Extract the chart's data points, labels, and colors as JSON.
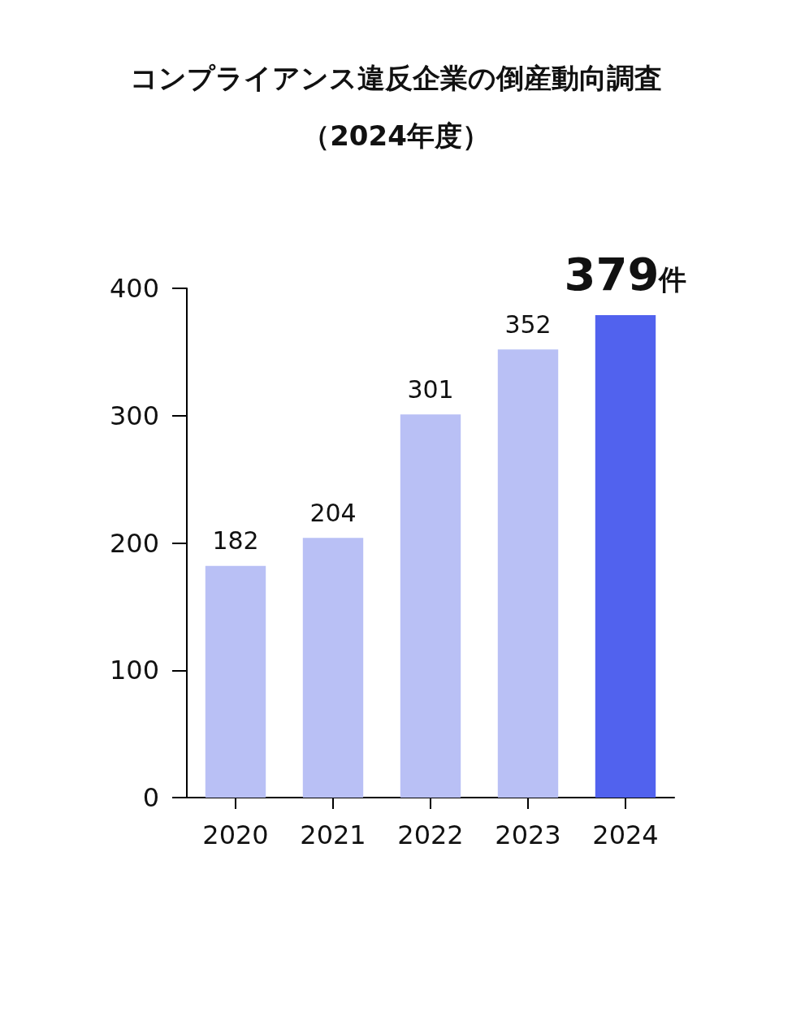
{
  "chart_data": {
    "type": "bar",
    "title": "コンプライアンス違反企業の倒産動向調査",
    "subtitle": "（2024年度）",
    "categories": [
      "2020",
      "2021",
      "2022",
      "2023",
      "2024"
    ],
    "values": [
      182,
      204,
      301,
      352,
      379
    ],
    "value_labels": [
      "182",
      "204",
      "301",
      "352",
      "379件"
    ],
    "colors": [
      "#b9c0f5",
      "#b9c0f5",
      "#b9c0f5",
      "#b9c0f5",
      "#5162ee"
    ],
    "ylim": [
      0,
      400
    ],
    "yticks": [
      0,
      100,
      200,
      300,
      400
    ],
    "grid": false
  }
}
